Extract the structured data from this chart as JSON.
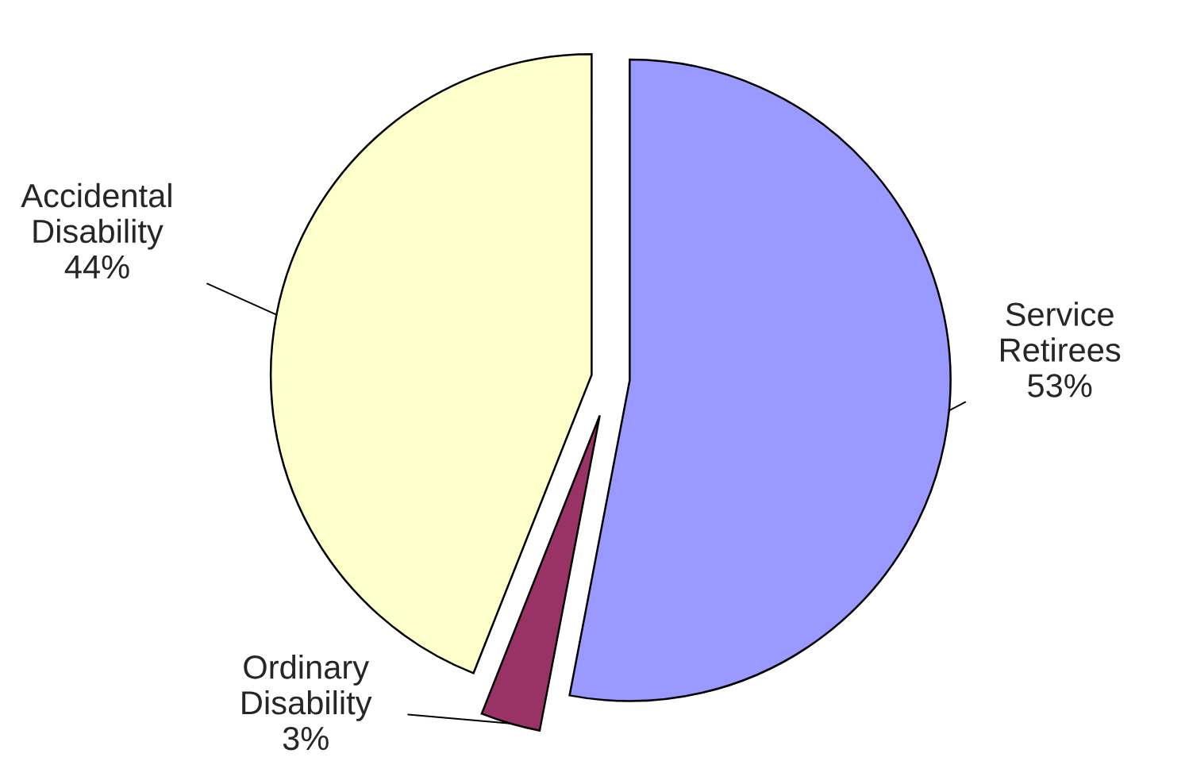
{
  "chart_data": {
    "type": "pie",
    "categories": [
      "Service Retirees",
      "Ordinary Disability",
      "Accidental Disability"
    ],
    "values": [
      53,
      3,
      44
    ],
    "colors": [
      "#9999ff",
      "#993366",
      "#ffffcc"
    ],
    "value_labels": [
      "53%",
      "3%",
      "44%"
    ],
    "legend": false
  }
}
